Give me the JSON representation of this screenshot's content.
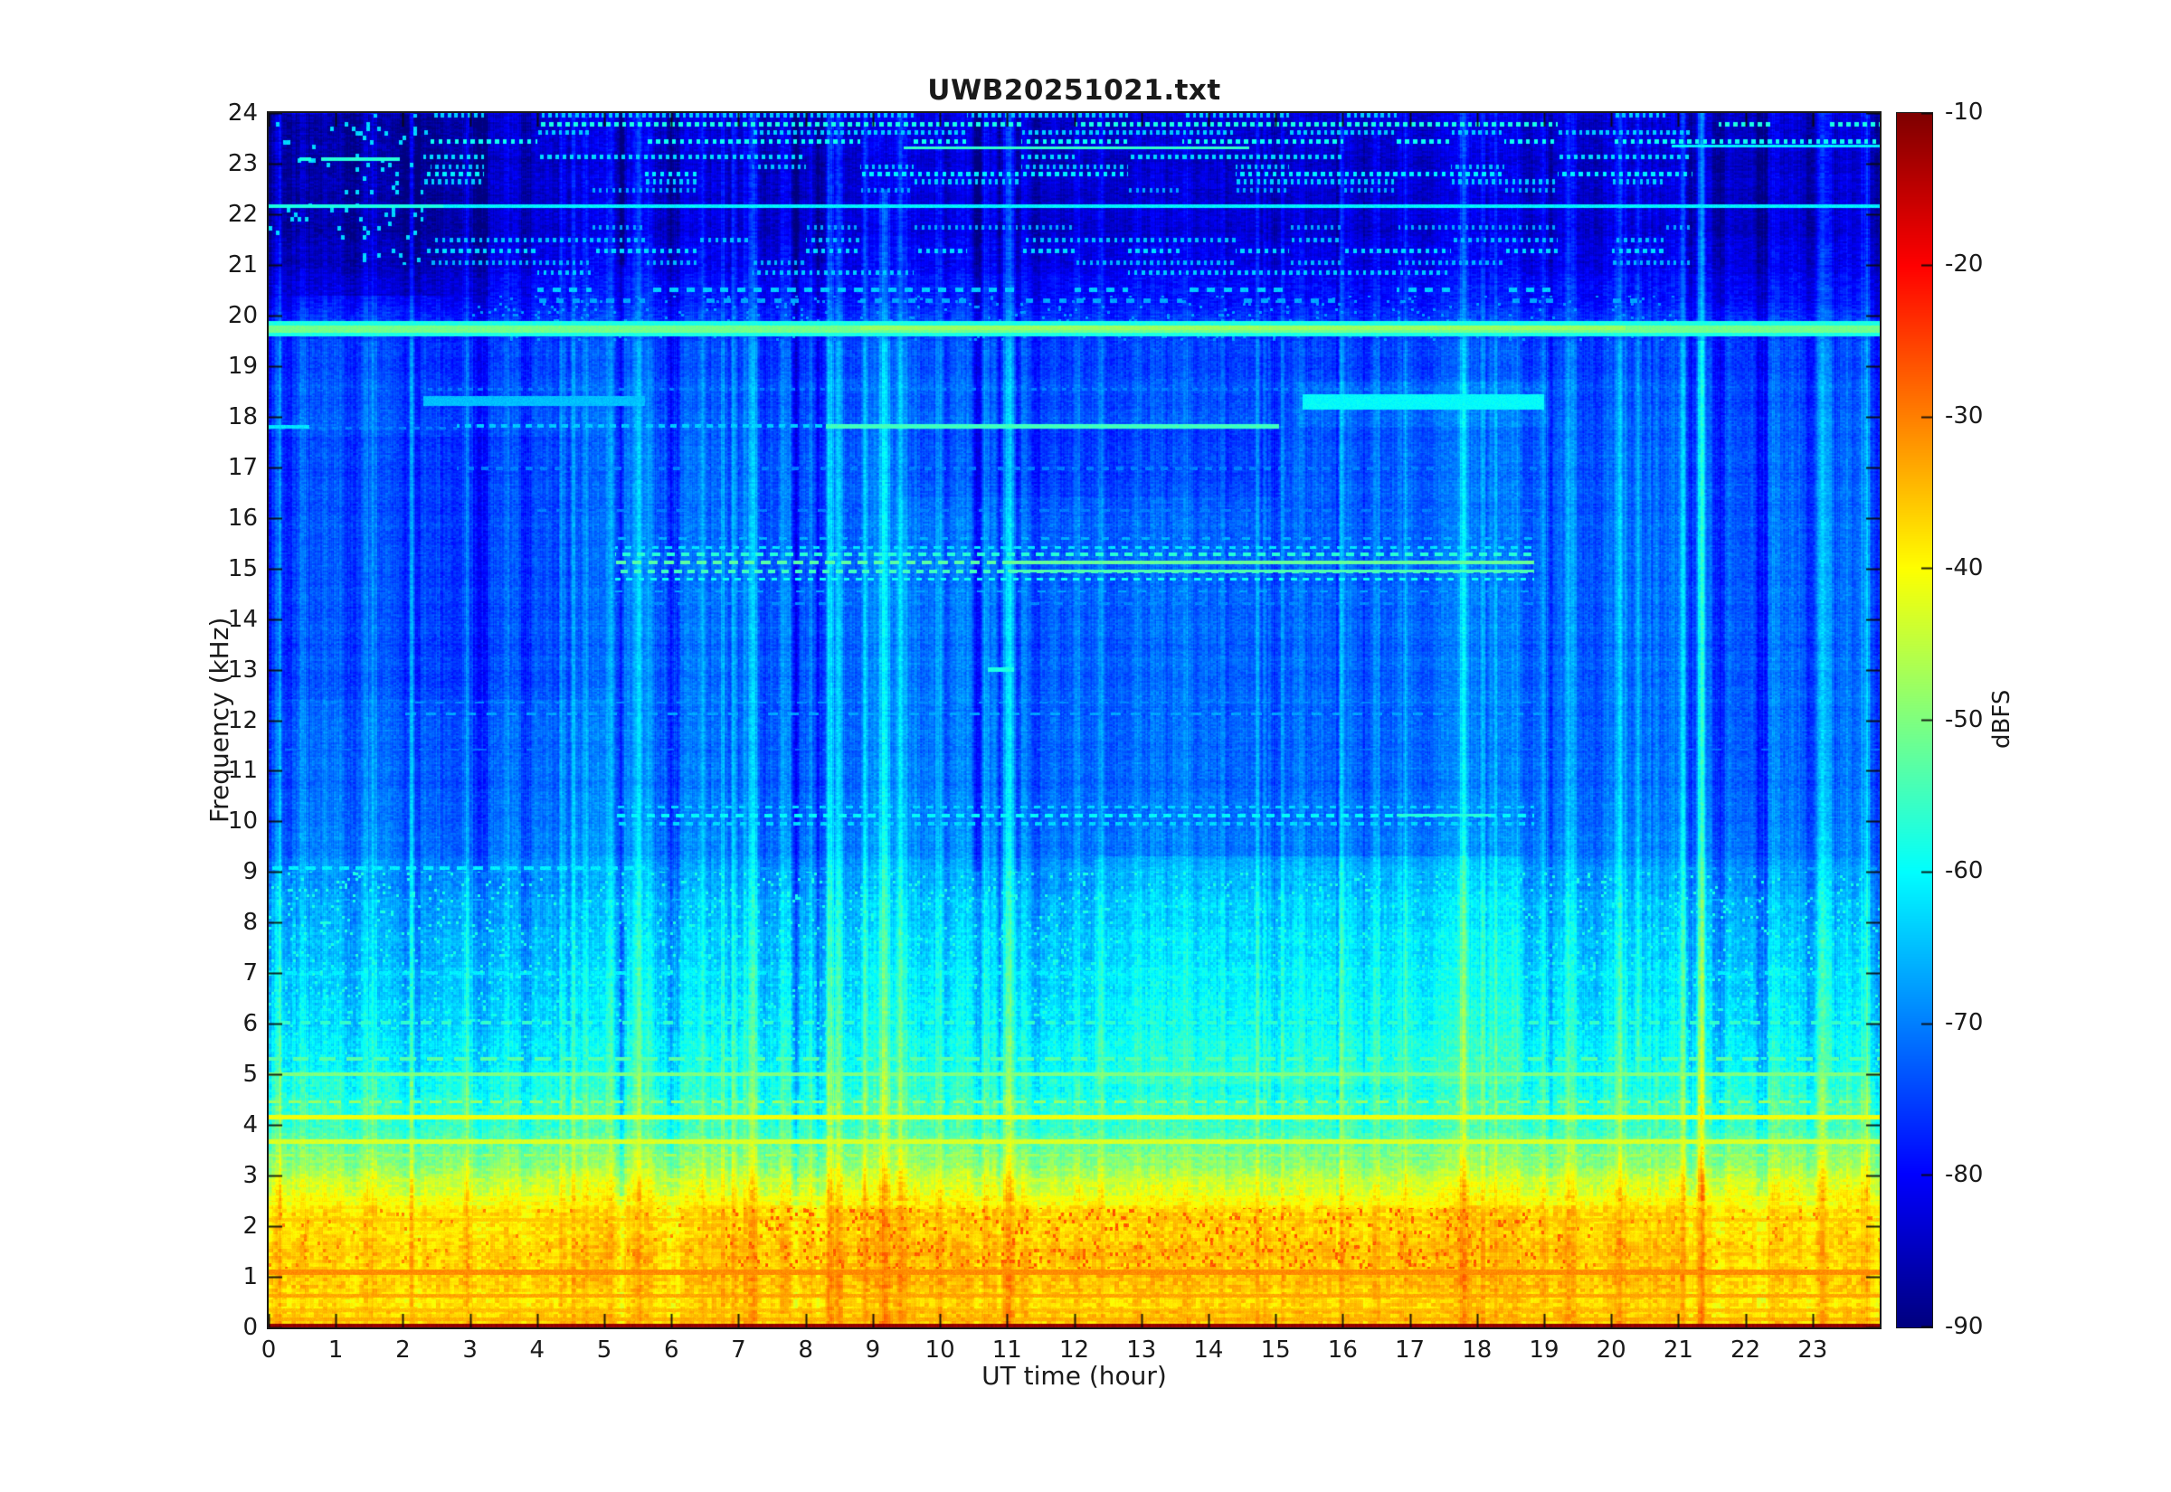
{
  "figure": {
    "background": "#ffffff",
    "frame_color": "#1a1a1a",
    "text_color": "#1a1a1a"
  },
  "chart_data": {
    "type": "heatmap",
    "subtype": "spectrogram",
    "title": "UWB20251021.txt",
    "xlabel": "UT time (hour)",
    "ylabel": "Frequency (kHz)",
    "colorbar_label": "dBFS",
    "colormap": "jet",
    "x_range": [
      0,
      24
    ],
    "y_range": [
      0,
      24
    ],
    "c_range": [
      -90,
      -10
    ],
    "x_ticks": [
      0,
      1,
      2,
      3,
      4,
      5,
      6,
      7,
      8,
      9,
      10,
      11,
      12,
      13,
      14,
      15,
      16,
      17,
      18,
      19,
      20,
      21,
      22,
      23
    ],
    "y_ticks": [
      0,
      1,
      2,
      3,
      4,
      5,
      6,
      7,
      8,
      9,
      10,
      11,
      12,
      13,
      14,
      15,
      16,
      17,
      18,
      19,
      20,
      21,
      22,
      23,
      24
    ],
    "colorbar_ticks": [
      -10,
      -20,
      -30,
      -40,
      -50,
      -60,
      -70,
      -80,
      -90
    ],
    "grid": false,
    "seed": 20251021,
    "dc_row": {
      "f_max": 0.07,
      "dB": -11.5
    },
    "base_profile": [
      [
        0.07,
        -37
      ],
      [
        0.5,
        -37.5
      ],
      [
        1.0,
        -36.5
      ],
      [
        1.6,
        -37
      ],
      [
        2.3,
        -38.5
      ],
      [
        2.6,
        -42
      ],
      [
        3.0,
        -47
      ],
      [
        3.5,
        -52
      ],
      [
        4.0,
        -56
      ],
      [
        4.6,
        -58
      ],
      [
        5.2,
        -60.5
      ],
      [
        6.0,
        -62.5
      ],
      [
        7.0,
        -64
      ],
      [
        8.0,
        -66
      ],
      [
        8.8,
        -68
      ],
      [
        9.5,
        -71
      ],
      [
        11,
        -72.5
      ],
      [
        13,
        -73
      ],
      [
        15,
        -73
      ],
      [
        17,
        -73.5
      ],
      [
        18.5,
        -74.5
      ],
      [
        19.4,
        -76
      ],
      [
        19.9,
        -77
      ],
      [
        20.4,
        -79.5
      ],
      [
        21.0,
        -82
      ],
      [
        21.8,
        -84
      ],
      [
        23.0,
        -84.5
      ],
      [
        24,
        -84
      ]
    ],
    "noise_bands": [
      {
        "f0": 0,
        "f1": 2.5,
        "amp": 2.8,
        "cw": 5,
        "ch": 4
      },
      {
        "f0": 2.5,
        "f1": 5,
        "amp": 2.6,
        "cw": 4,
        "ch": 3
      },
      {
        "f0": 5,
        "f1": 9,
        "amp": 2.2,
        "cw": 3,
        "ch": 3
      },
      {
        "f0": 9,
        "f1": 19.5,
        "amp": 1.8,
        "cw": 3,
        "ch": 2
      },
      {
        "f0": 19.5,
        "f1": 24,
        "amp": 2.0,
        "cw": 5,
        "ch": 2
      }
    ],
    "col_factor": [
      {
        "f0": 0,
        "f1": 2.5,
        "k": 0.45
      },
      {
        "f0": 2.5,
        "f1": 4,
        "k": 0.8
      },
      {
        "f0": 4,
        "f1": 19.5,
        "k": 1.0
      },
      {
        "f0": 19.5,
        "f1": 21,
        "k": 0.8
      },
      {
        "f0": 21,
        "f1": 24,
        "k": 0.9
      }
    ],
    "streaks": {
      "base_amp": 1.6,
      "bright": {
        "n": 150,
        "amp": [
          1.5,
          6
        ],
        "w": [
          1,
          4
        ]
      },
      "dark": {
        "n": 70,
        "amp": [
          -4.5,
          -1.5
        ],
        "w": [
          1,
          6
        ]
      },
      "wide": {
        "n": 25,
        "amp": [
          1,
          2.5
        ],
        "w": [
          8,
          24
        ]
      }
    },
    "v_lines": [
      {
        "t": 2.12,
        "w": 2,
        "a": 7,
        "f0": 0,
        "f1": 24
      },
      {
        "t": 5.27,
        "w": 2,
        "a": 5,
        "f0": 8,
        "f1": 21
      },
      {
        "t": 6.9,
        "w": 2,
        "a": 4,
        "f0": 0,
        "f1": 24
      },
      {
        "t": 8.87,
        "w": 2,
        "a": 7,
        "f0": 0,
        "f1": 24
      },
      {
        "t": 9.17,
        "w": 3,
        "a": 10,
        "f0": 0,
        "f1": 22.5
      },
      {
        "t": 10.55,
        "w": 3,
        "a": -4,
        "f0": 9,
        "f1": 24
      },
      {
        "t": 10.82,
        "w": 2,
        "a": 8,
        "f0": 0,
        "f1": 24
      },
      {
        "t": 11.02,
        "w": 3,
        "a": 9,
        "f0": 0,
        "f1": 24
      },
      {
        "t": 11.15,
        "w": 2,
        "a": -3,
        "f0": 9,
        "f1": 24
      },
      {
        "t": 14.72,
        "w": 2,
        "a": 7,
        "f0": 0,
        "f1": 24
      },
      {
        "t": 15.6,
        "w": 2,
        "a": 5,
        "f0": 0,
        "f1": 24
      },
      {
        "t": 16.95,
        "w": 2,
        "a": 6,
        "f0": 0,
        "f1": 24
      },
      {
        "t": 19.0,
        "w": 2,
        "a": 5,
        "f0": 0,
        "f1": 24
      },
      {
        "t": 20.4,
        "w": 2,
        "a": 5,
        "f0": 5,
        "f1": 24
      },
      {
        "t": 21.35,
        "w": 2,
        "a": 6,
        "f0": 0,
        "f1": 24
      },
      {
        "t": 23.25,
        "w": 2,
        "a": 5,
        "f0": 5,
        "f1": 24
      },
      {
        "t": 23.82,
        "w": 2,
        "a": 7,
        "f0": 0,
        "f1": 24
      }
    ],
    "h_lines": [
      {
        "f": 23.32,
        "h": 0.07,
        "t0": 9.45,
        "t1": 14.6,
        "dB": -56
      },
      {
        "f": 23.36,
        "h": 0.06,
        "t0": 20.9,
        "t1": 24,
        "dB": -61
      },
      {
        "f": 23.1,
        "h": 0.06,
        "t0": 0.45,
        "t1": 0.62,
        "dB": -58
      },
      {
        "f": 23.1,
        "h": 0.06,
        "t0": 0.78,
        "t1": 1.95,
        "dB": -57
      },
      {
        "f": 22.17,
        "h": 0.07,
        "t0": 0,
        "t1": 24,
        "dB": -61
      },
      {
        "f": 22.17,
        "h": 0.08,
        "t0": 0,
        "t1": 2.6,
        "dB": -58
      },
      {
        "f": 19.74,
        "h": 0.3,
        "t0": 0,
        "t1": 24,
        "dB": -58
      },
      {
        "f": 19.74,
        "h": 0.14,
        "t0": 0,
        "t1": 24,
        "dB": -51
      },
      {
        "f": 19.76,
        "h": 0.1,
        "t0": 8.8,
        "t1": 20.2,
        "dB": -48
      },
      {
        "f": 18.32,
        "h": 0.2,
        "t0": 2.3,
        "t1": 5.6,
        "dB": -65
      },
      {
        "f": 18.3,
        "h": 0.3,
        "t0": 15.4,
        "t1": 19.0,
        "dB": -60
      },
      {
        "f": 18.55,
        "h": 0.06,
        "t0": 2.3,
        "t1": 19,
        "dB": -70,
        "dash": [
          0.15,
          0.5
        ]
      },
      {
        "f": 17.82,
        "h": 0.09,
        "t0": 8.3,
        "t1": 15.05,
        "dB": -55
      },
      {
        "f": 17.82,
        "h": 0.07,
        "t0": 2.8,
        "t1": 8.3,
        "dB": -64,
        "dash": [
          0.18,
          0.55
        ]
      },
      {
        "f": 17.78,
        "h": 0.06,
        "t0": 0,
        "t1": 2.8,
        "dB": -70,
        "dash": [
          0.2,
          0.5
        ]
      },
      {
        "f": 17.8,
        "h": 0.07,
        "t0": 0,
        "t1": 0.6,
        "dB": -62
      },
      {
        "f": 16.98,
        "h": 0.06,
        "t0": 2.8,
        "t1": 19,
        "dB": -70,
        "dash": [
          0.22,
          0.5
        ]
      },
      {
        "f": 16.15,
        "h": 0.06,
        "t0": 4,
        "t1": 19,
        "dB": -70,
        "dash": [
          0.3,
          0.5
        ]
      },
      {
        "f": 15.6,
        "h": 0.05,
        "t0": 5.15,
        "t1": 18.85,
        "dB": -66,
        "dash": [
          0.3,
          0.4
        ]
      },
      {
        "f": 15.42,
        "h": 0.06,
        "t0": 5.15,
        "t1": 18.85,
        "dB": -62,
        "dash": [
          0.2,
          0.5
        ]
      },
      {
        "f": 15.28,
        "h": 0.07,
        "t0": 5.15,
        "t1": 18.85,
        "dB": -57,
        "dash": [
          0.22,
          0.55
        ]
      },
      {
        "f": 15.12,
        "h": 0.08,
        "t0": 5.15,
        "t1": 18.85,
        "dB": -53,
        "dash": [
          0.24,
          0.6
        ]
      },
      {
        "f": 14.95,
        "h": 0.07,
        "t0": 5.15,
        "t1": 18.85,
        "dB": -55,
        "dash": [
          0.2,
          0.55
        ]
      },
      {
        "f": 14.79,
        "h": 0.06,
        "t0": 5.15,
        "t1": 18.85,
        "dB": -59,
        "dash": [
          0.18,
          0.5
        ]
      },
      {
        "f": 15.12,
        "h": 0.07,
        "t0": 11,
        "t1": 18.85,
        "dB": -52
      },
      {
        "f": 14.95,
        "h": 0.06,
        "t0": 11,
        "t1": 18.85,
        "dB": -54
      },
      {
        "f": 14.55,
        "h": 0.05,
        "t0": 5.15,
        "t1": 18.85,
        "dB": -67,
        "dash": [
          0.3,
          0.4
        ]
      },
      {
        "f": 14.3,
        "h": 0.05,
        "t0": 5.15,
        "t1": 18.85,
        "dB": -69,
        "dash": [
          0.35,
          0.4
        ]
      },
      {
        "f": 13.0,
        "h": 0.1,
        "t0": 10.7,
        "t1": 11.1,
        "dB": -58
      },
      {
        "f": 12.35,
        "h": 0.05,
        "t0": 2,
        "t1": 19,
        "dB": -69,
        "dash": [
          0.3,
          0.45
        ]
      },
      {
        "f": 12.12,
        "h": 0.05,
        "t0": 2,
        "t1": 19,
        "dB": -67,
        "dash": [
          0.3,
          0.5
        ]
      },
      {
        "f": 11.42,
        "h": 0.05,
        "t0": 0,
        "t1": 24,
        "dB": -71,
        "dash": [
          0.4,
          0.5
        ]
      },
      {
        "f": 10.28,
        "h": 0.06,
        "t0": 5.15,
        "t1": 18.85,
        "dB": -63,
        "dash": [
          0.2,
          0.5
        ]
      },
      {
        "f": 10.12,
        "h": 0.07,
        "t0": 5.15,
        "t1": 18.85,
        "dB": -60,
        "dash": [
          0.22,
          0.55
        ]
      },
      {
        "f": 9.95,
        "h": 0.06,
        "t0": 5.15,
        "t1": 18.85,
        "dB": -63,
        "dash": [
          0.2,
          0.5
        ]
      },
      {
        "f": 10.12,
        "h": 0.06,
        "t0": 16.8,
        "t1": 18.2,
        "dB": -57
      },
      {
        "f": 9.07,
        "h": 0.07,
        "t0": 0,
        "t1": 5.6,
        "dB": -61,
        "dash": [
          0.25,
          0.6
        ]
      },
      {
        "f": 9.07,
        "h": 0.06,
        "t0": 5.6,
        "t1": 24,
        "dB": -67,
        "dash": [
          0.3,
          0.45
        ]
      },
      {
        "f": 8.45,
        "h": 0.05,
        "t0": 0,
        "t1": 24,
        "dB": -66,
        "dash": [
          0.5,
          0.4
        ]
      },
      {
        "f": 7.0,
        "h": 0.06,
        "t0": 0,
        "t1": 24,
        "dB": -61,
        "dash": [
          0.35,
          0.5
        ]
      },
      {
        "f": 6.02,
        "h": 0.07,
        "t0": 0,
        "t1": 24,
        "dB": -56,
        "dash": [
          0.3,
          0.5
        ]
      },
      {
        "f": 5.3,
        "h": 0.06,
        "t0": 0,
        "t1": 24,
        "dB": -53,
        "dash": [
          0.4,
          0.6
        ]
      },
      {
        "f": 5.0,
        "h": 0.07,
        "t0": 0,
        "t1": 24,
        "dB": -50
      },
      {
        "f": 4.45,
        "h": 0.06,
        "t0": 0,
        "t1": 24,
        "dB": -48,
        "dash": [
          0.3,
          0.6
        ]
      },
      {
        "f": 4.15,
        "h": 0.08,
        "t0": 0,
        "t1": 24,
        "dB": -41
      },
      {
        "f": 3.67,
        "h": 0.08,
        "t0": 0,
        "t1": 24,
        "dB": -43
      },
      {
        "f": 3.4,
        "h": 0.06,
        "t0": 0,
        "t1": 24,
        "dB": -47,
        "dash": [
          0.3,
          0.6
        ]
      },
      {
        "f": 2.9,
        "h": 0.07,
        "t0": 0,
        "t1": 24,
        "dB": -44,
        "dash": [
          0.5,
          0.7
        ]
      },
      {
        "f": 2.55,
        "h": 0.07,
        "t0": 0,
        "t1": 24,
        "dB": -41
      },
      {
        "f": 2.12,
        "h": 0.08,
        "t0": 0,
        "t1": 24,
        "dB": -36
      },
      {
        "f": 1.85,
        "h": 0.06,
        "t0": 0,
        "t1": 24,
        "dB": -38,
        "dash": [
          0.4,
          0.6
        ]
      },
      {
        "f": 1.52,
        "h": 0.06,
        "t0": 0,
        "t1": 24,
        "dB": -37,
        "dash": [
          0.5,
          0.7
        ]
      },
      {
        "f": 1.08,
        "h": 0.1,
        "t0": 0,
        "t1": 24,
        "dB": -31
      },
      {
        "f": 0.62,
        "h": 0.08,
        "t0": 0,
        "t1": 24,
        "dB": -33
      },
      {
        "f": 0.33,
        "h": 0.06,
        "t0": 0,
        "t1": 24,
        "dB": -35
      },
      {
        "f": 0.15,
        "h": 0.06,
        "t0": 0,
        "t1": 24,
        "dB": -34
      }
    ],
    "burst_rows": [
      {
        "f": 23.97,
        "dB": -64,
        "t0": 2.3,
        "t1": 21.2,
        "period": 0.1,
        "duty": 0.5,
        "gate": 0.6
      },
      {
        "f": 23.78,
        "dB": -58,
        "t0": 2.3,
        "t1": 24,
        "period": 0.12,
        "duty": 0.55,
        "gate": 0.7
      },
      {
        "f": 23.62,
        "dB": -64,
        "t0": 2.3,
        "t1": 21.2,
        "period": 0.1,
        "duty": 0.5,
        "gate": 0.55
      },
      {
        "f": 23.45,
        "dB": -59,
        "t0": 2.3,
        "t1": 24,
        "period": 0.12,
        "duty": 0.5,
        "gate": 0.6
      },
      {
        "f": 23.15,
        "dB": -63,
        "t0": 2.3,
        "t1": 21.2,
        "period": 0.11,
        "duty": 0.5,
        "gate": 0.55
      },
      {
        "f": 22.95,
        "dB": -65,
        "t0": 2.3,
        "t1": 21.2,
        "period": 0.1,
        "duty": 0.45,
        "gate": 0.5
      },
      {
        "f": 22.8,
        "dB": -61,
        "t0": 2.3,
        "t1": 21.2,
        "period": 0.12,
        "duty": 0.5,
        "gate": 0.6
      },
      {
        "f": 22.65,
        "dB": -64,
        "t0": 2.3,
        "t1": 21.2,
        "period": 0.1,
        "duty": 0.45,
        "gate": 0.5
      },
      {
        "f": 22.48,
        "dB": -67,
        "t0": 2.3,
        "t1": 21.2,
        "period": 0.1,
        "duty": 0.4,
        "gate": 0.45
      },
      {
        "f": 21.75,
        "dB": -67,
        "t0": 2.3,
        "t1": 21.2,
        "period": 0.1,
        "duty": 0.4,
        "gate": 0.4
      },
      {
        "f": 21.5,
        "dB": -65,
        "t0": 2.3,
        "t1": 21.2,
        "period": 0.11,
        "duty": 0.45,
        "gate": 0.5
      },
      {
        "f": 21.28,
        "dB": -63,
        "t0": 2.3,
        "t1": 21.2,
        "period": 0.12,
        "duty": 0.5,
        "gate": 0.55
      },
      {
        "f": 21.05,
        "dB": -66,
        "t0": 2.3,
        "t1": 21.2,
        "period": 0.1,
        "duty": 0.45,
        "gate": 0.5
      },
      {
        "f": 20.85,
        "dB": -64,
        "t0": 2.3,
        "t1": 21.2,
        "period": 0.11,
        "duty": 0.45,
        "gate": 0.5
      },
      {
        "f": 20.52,
        "dB": -64,
        "t0": 3,
        "t1": 20.5,
        "period": 0.25,
        "duty": 0.5,
        "gate": 0.55
      },
      {
        "f": 20.3,
        "dB": -67,
        "t0": 3,
        "t1": 20.5,
        "period": 0.25,
        "duty": 0.45,
        "gate": 0.5
      }
    ],
    "patches": [
      {
        "t0": 0,
        "t1": 3.25,
        "f0": 20.4,
        "f1": 24,
        "d": -3.5
      },
      {
        "t0": 0,
        "t1": 0.4,
        "f0": 9,
        "f1": 20.4,
        "d": -2.5
      },
      {
        "t0": 2.55,
        "t1": 3.25,
        "f0": 9,
        "f1": 20.4,
        "d": -2.5
      },
      {
        "t0": 0,
        "t1": 5.05,
        "f0": 12.4,
        "f1": 17.6,
        "d": -1.5
      },
      {
        "t0": 0,
        "t1": 5.05,
        "f0": 5,
        "f1": 9,
        "d": -1.2
      },
      {
        "t0": 9.3,
        "t1": 15.05,
        "f0": 16.4,
        "f1": 17.75,
        "d": -2
      },
      {
        "t0": 12.3,
        "t1": 18.7,
        "f0": 4.8,
        "f1": 9.3,
        "d": 2.2
      },
      {
        "t0": 15.3,
        "t1": 19.1,
        "f0": 17.8,
        "f1": 18.7,
        "d": 1.5
      },
      {
        "t0": 21.5,
        "t1": 24,
        "f0": 2.5,
        "f1": 5,
        "d": 1.5
      },
      {
        "t0": 6.5,
        "t1": 21,
        "f0": 0.1,
        "f1": 2.4,
        "d": 1
      }
    ],
    "speckles": [
      {
        "f0": 1.15,
        "f1": 2.35,
        "t0": 6.8,
        "t1": 19.3,
        "cell": [
          3,
          4
        ],
        "den": 0.07,
        "dB": -27
      },
      {
        "f0": 1.15,
        "f1": 2.35,
        "t0": 0,
        "t1": 24,
        "cell": [
          3,
          4
        ],
        "den": 0.025,
        "dB": -30
      },
      {
        "f0": 2.45,
        "f1": 3.45,
        "t0": 0,
        "t1": 24,
        "cell": [
          4,
          4
        ],
        "den": 0.1,
        "dB": -52
      },
      {
        "f0": 21,
        "f1": 24,
        "t0": 0,
        "t1": 2.3,
        "cell": [
          4,
          5
        ],
        "den": 0.04,
        "dB": -63
      },
      {
        "f0": 5,
        "f1": 9,
        "t0": 0,
        "t1": 24,
        "cell": [
          3,
          3
        ],
        "den": 0.05,
        "dB": -58
      },
      {
        "f0": 19.5,
        "f1": 20.4,
        "t0": 3,
        "t1": 21,
        "cell": [
          3,
          3
        ],
        "den": 0.05,
        "dB": -68
      }
    ]
  }
}
